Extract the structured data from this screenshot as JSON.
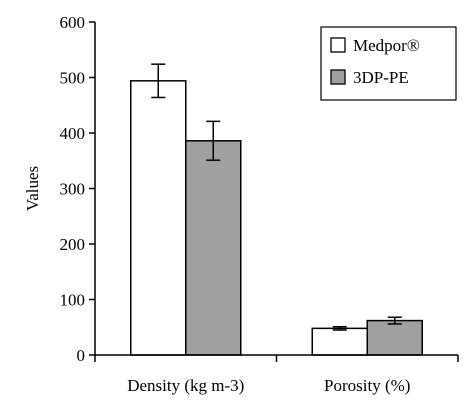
{
  "chart_data": {
    "type": "bar",
    "categories": [
      "Density (kg m-3)",
      "Porosity (%)"
    ],
    "series": [
      {
        "name": "Medpor®",
        "values": [
          494,
          48
        ],
        "error": [
          30,
          3
        ],
        "color": "#ffffff"
      },
      {
        "name": "3DP-PE",
        "values": [
          386,
          62
        ],
        "error": [
          35,
          6
        ],
        "color": "#a0a0a0"
      }
    ],
    "ylabel": "Values",
    "xlabel": "",
    "ylim": [
      0,
      600
    ],
    "yticks": [
      0,
      100,
      200,
      300,
      400,
      500,
      600
    ],
    "grid": false,
    "legend_position": "top-right"
  }
}
